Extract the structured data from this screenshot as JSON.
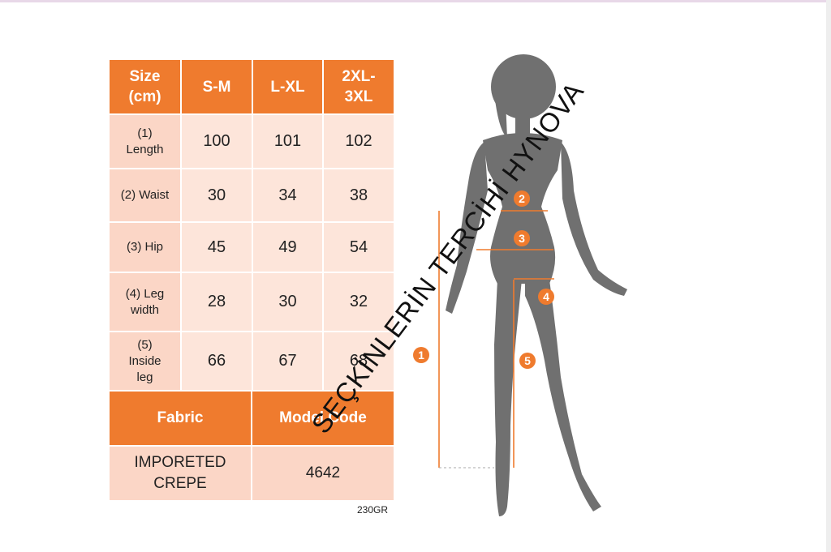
{
  "size_table": {
    "header": [
      "Size\n(cm)",
      "S-M",
      "L-XL",
      "2XL-\n3XL"
    ],
    "rows": [
      {
        "label": "(1)\nLength",
        "values": [
          "100",
          "101",
          "102"
        ]
      },
      {
        "label": "(2) Waist",
        "values": [
          "30",
          "34",
          "38"
        ]
      },
      {
        "label": "(3) Hip",
        "values": [
          "45",
          "49",
          "54"
        ]
      },
      {
        "label": "(4) Leg\nwidth",
        "values": [
          "28",
          "30",
          "32"
        ]
      },
      {
        "label": "(5)\nInside\nleg",
        "values": [
          "66",
          "67",
          "68"
        ]
      }
    ]
  },
  "fabric_table": {
    "fabric_header": "Fabric",
    "model_code_header": "Model Code",
    "fabric_value": "IMPORETED\nCREPE",
    "model_code_value": "4642"
  },
  "weight": "230GR",
  "watermark": "SEÇKİNLERİN TERCİHİ HYNOVA",
  "markers": [
    "1",
    "2",
    "3",
    "4",
    "5"
  ],
  "colors": {
    "accent": "#ef7b2e",
    "label_fill": "#fbd6c6",
    "value_fill": "#fde5da",
    "silhouette": "#707070"
  }
}
